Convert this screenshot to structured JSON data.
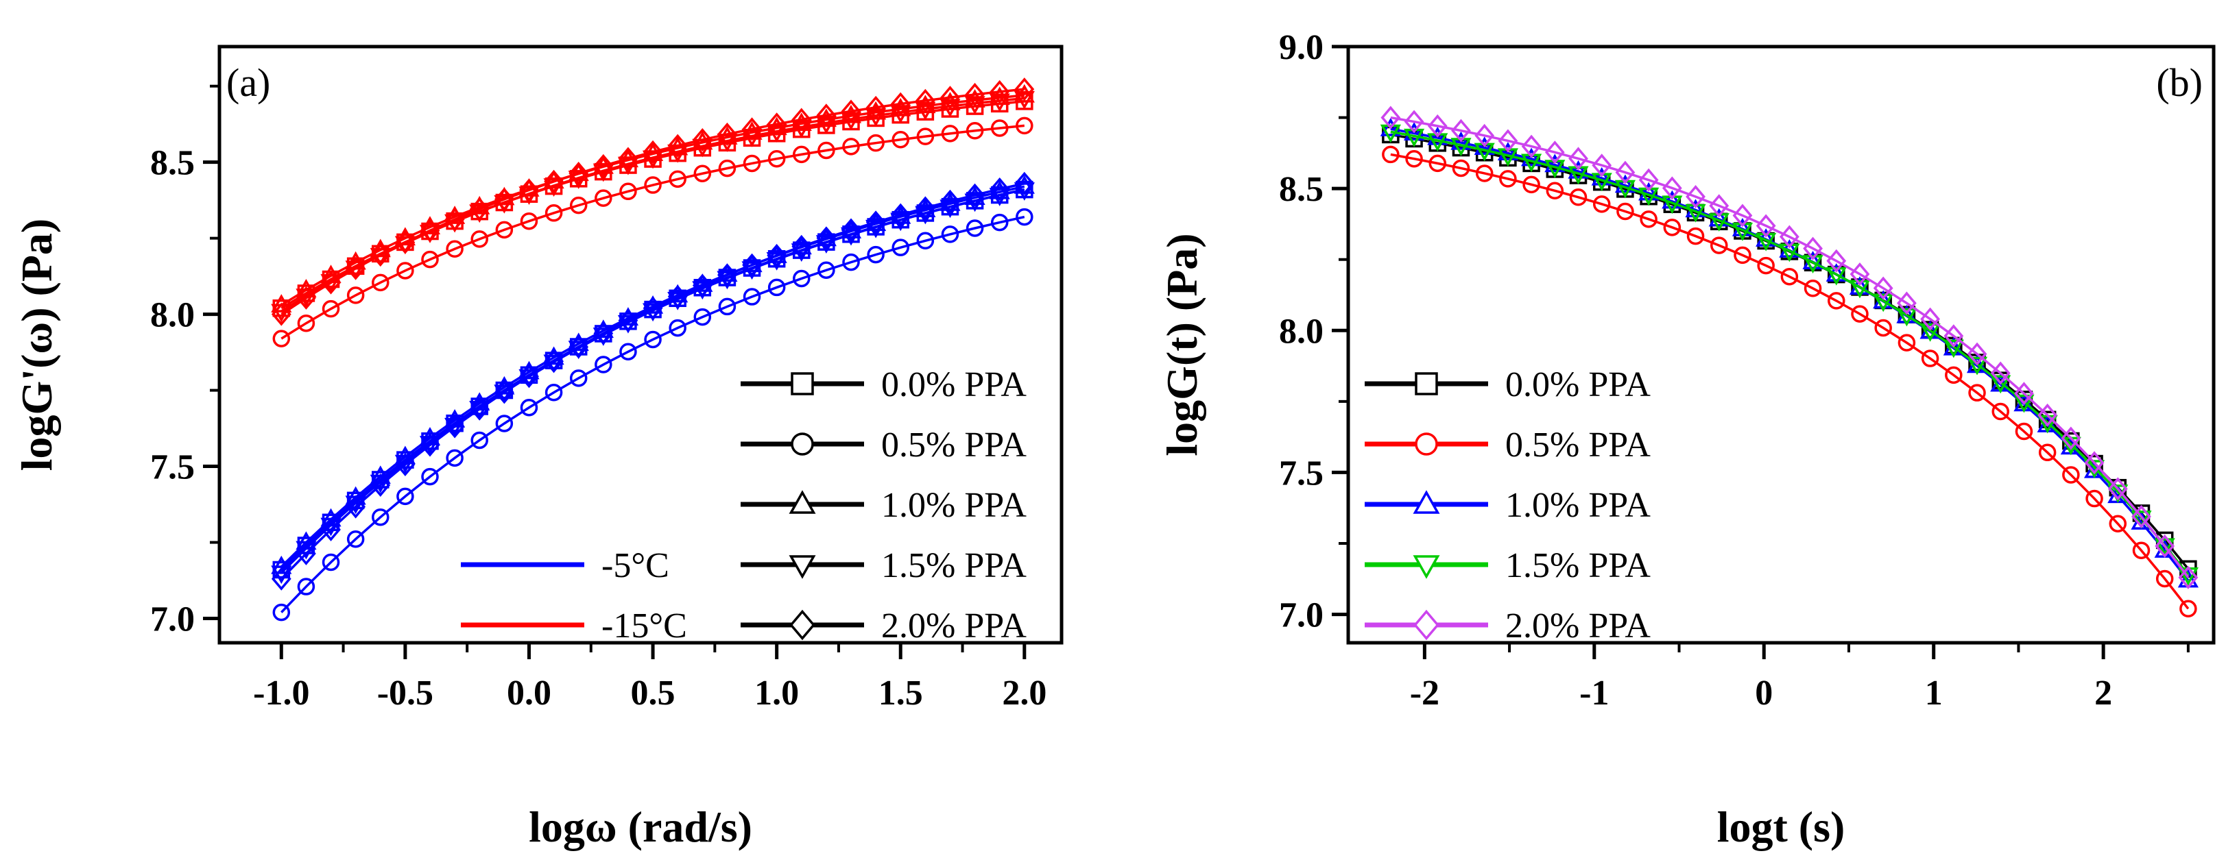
{
  "chart_data": [
    {
      "type": "line",
      "panel_label": "(a)",
      "xlabel": "logω (rad/s)",
      "ylabel": "logG'(ω) (Pa)",
      "xlim": [
        -1.25,
        2.15
      ],
      "ylim": [
        6.92,
        8.88
      ],
      "xticks": [
        -1.0,
        -0.5,
        0.0,
        0.5,
        1.0,
        1.5,
        2.0
      ],
      "xtick_labels": [
        "-1.0",
        "-0.5",
        "0.0",
        "0.5",
        "1.0",
        "1.5",
        "2.0"
      ],
      "yticks": [
        7.0,
        7.5,
        8.0,
        8.5
      ],
      "ytick_labels": [
        "7.0",
        "7.5",
        "8.0",
        "8.5"
      ],
      "x_range": [
        -1.0,
        2.0
      ],
      "n_points": 31,
      "legend_markers": [
        {
          "label": "0.0% PPA",
          "marker": "square"
        },
        {
          "label": "0.5% PPA",
          "marker": "circle"
        },
        {
          "label": "1.0% PPA",
          "marker": "triangle-up"
        },
        {
          "label": "1.5% PPA",
          "marker": "triangle-down"
        },
        {
          "label": "2.0% PPA",
          "marker": "diamond"
        }
      ],
      "legend_temps": [
        {
          "label": "-5°C",
          "color": "#0000ff"
        },
        {
          "label": "-15°C",
          "color": "#ff0000"
        }
      ],
      "series": [
        {
          "name": "0.0% PPA -5°C",
          "marker": "square",
          "color": "#0000ff",
          "start": 7.16,
          "end": 8.41,
          "curv": 1.55
        },
        {
          "name": "0.5% PPA -5°C",
          "marker": "circle",
          "color": "#0000ff",
          "start": 7.02,
          "end": 8.32,
          "curv": 1.6
        },
        {
          "name": "1.0% PPA -5°C",
          "marker": "triangle-up",
          "color": "#0000ff",
          "start": 7.17,
          "end": 8.42,
          "curv": 1.55
        },
        {
          "name": "1.5% PPA -5°C",
          "marker": "triangle-down",
          "color": "#0000ff",
          "start": 7.15,
          "end": 8.41,
          "curv": 1.55
        },
        {
          "name": "2.0% PPA -5°C",
          "marker": "diamond",
          "color": "#0000ff",
          "start": 7.13,
          "end": 8.43,
          "curv": 1.55
        },
        {
          "name": "0.0% PPA -15°C",
          "marker": "square",
          "color": "#ff0000",
          "start": 8.02,
          "end": 8.7,
          "curv": 1.9
        },
        {
          "name": "0.5% PPA -15°C",
          "marker": "circle",
          "color": "#ff0000",
          "start": 7.92,
          "end": 8.62,
          "curv": 1.9
        },
        {
          "name": "1.0% PPA -15°C",
          "marker": "triangle-up",
          "color": "#ff0000",
          "start": 8.03,
          "end": 8.72,
          "curv": 1.9
        },
        {
          "name": "1.5% PPA -15°C",
          "marker": "triangle-down",
          "color": "#ff0000",
          "start": 8.01,
          "end": 8.71,
          "curv": 1.9
        },
        {
          "name": "2.0% PPA -15°C",
          "marker": "diamond",
          "color": "#ff0000",
          "start": 8.0,
          "end": 8.74,
          "curv": 1.9
        }
      ]
    },
    {
      "type": "line",
      "panel_label": "(b)",
      "xlabel": "logt (s)",
      "ylabel": "logG(t) (Pa)",
      "xlim": [
        -2.45,
        2.65
      ],
      "ylim": [
        6.9,
        9.0
      ],
      "xticks": [
        -2,
        -1,
        0,
        1,
        2
      ],
      "xtick_labels": [
        "-2",
        "-1",
        "0",
        "1",
        "2"
      ],
      "yticks": [
        7.0,
        7.5,
        8.0,
        8.5,
        9.0
      ],
      "ytick_labels": [
        "7.0",
        "7.5",
        "8.0",
        "8.5",
        "9.0"
      ],
      "x_range": [
        -2.2,
        2.5
      ],
      "n_points": 35,
      "legend": [
        {
          "label": "0.0% PPA",
          "marker": "square",
          "color": "#000000"
        },
        {
          "label": "0.5% PPA",
          "marker": "circle",
          "color": "#ff0000"
        },
        {
          "label": "1.0% PPA",
          "marker": "triangle-up",
          "color": "#0000ff"
        },
        {
          "label": "1.5% PPA",
          "marker": "triangle-down",
          "color": "#00cc00"
        },
        {
          "label": "2.0% PPA",
          "marker": "diamond",
          "color": "#cc44ee"
        }
      ],
      "series": [
        {
          "name": "0.0% PPA",
          "marker": "square",
          "color": "#000000",
          "start": 8.69,
          "end": 7.16,
          "curv": 2.0
        },
        {
          "name": "0.5% PPA",
          "marker": "circle",
          "color": "#ff0000",
          "start": 8.62,
          "end": 7.02,
          "curv": 2.0
        },
        {
          "name": "1.0% PPA",
          "marker": "triangle-up",
          "color": "#0000ff",
          "start": 8.71,
          "end": 7.12,
          "curv": 2.0
        },
        {
          "name": "1.5% PPA",
          "marker": "triangle-down",
          "color": "#00cc00",
          "start": 8.7,
          "end": 7.14,
          "curv": 2.0
        },
        {
          "name": "2.0% PPA",
          "marker": "diamond",
          "color": "#cc44ee",
          "start": 8.75,
          "end": 7.13,
          "curv": 2.1
        }
      ]
    }
  ]
}
